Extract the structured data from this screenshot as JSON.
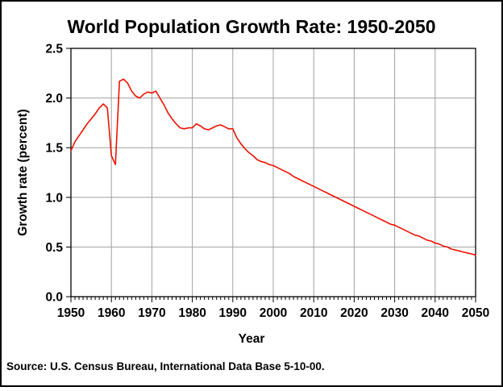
{
  "window": {
    "background": "#ffffff",
    "border_color": "#000000"
  },
  "chart_data": {
    "type": "line",
    "title": "World Population Growth Rate: 1950-2050",
    "xlabel": "Year",
    "ylabel": "Growth rate (percent)",
    "source_note": "Source: U.S. Census Bureau, International Data Base 5-10-00.",
    "xlim": [
      1950,
      2050
    ],
    "ylim": [
      0,
      2.5
    ],
    "x_tick_labels": [
      "1950",
      "1960",
      "1970",
      "1980",
      "1990",
      "2000",
      "2010",
      "2020",
      "2030",
      "2040",
      "2050"
    ],
    "x_ticks_major": [
      1950,
      1960,
      1970,
      1980,
      1990,
      2000,
      2010,
      2020,
      2030,
      2040,
      2050
    ],
    "x_minor_tick_step": 1,
    "y_tick_labels": [
      "0.0",
      "0.5",
      "1.0",
      "1.5",
      "2.0",
      "2.5"
    ],
    "y_ticks": [
      0.0,
      0.5,
      1.0,
      1.5,
      2.0,
      2.5
    ],
    "grid": {
      "vertical_at": [
        1960,
        1970,
        1980,
        1990,
        2000,
        2010,
        2020,
        2030,
        2040
      ],
      "horizontal_at": [
        0.5,
        1.0,
        1.5,
        2.0
      ],
      "color": "#a0a0a0"
    },
    "legend": "none",
    "series": [
      {
        "name": "World population growth rate (percent)",
        "color": "#ee1100",
        "x": [
          1950,
          1951,
          1952,
          1953,
          1954,
          1955,
          1956,
          1957,
          1958,
          1959,
          1960,
          1961,
          1962,
          1963,
          1964,
          1965,
          1966,
          1967,
          1968,
          1969,
          1970,
          1971,
          1972,
          1973,
          1974,
          1975,
          1976,
          1977,
          1978,
          1979,
          1980,
          1981,
          1982,
          1983,
          1984,
          1985,
          1986,
          1987,
          1988,
          1989,
          1990,
          1991,
          1992,
          1993,
          1994,
          1995,
          1996,
          1997,
          1998,
          1999,
          2000,
          2001,
          2002,
          2003,
          2004,
          2005,
          2006,
          2007,
          2008,
          2009,
          2010,
          2011,
          2012,
          2013,
          2014,
          2015,
          2016,
          2017,
          2018,
          2019,
          2020,
          2021,
          2022,
          2023,
          2024,
          2025,
          2026,
          2027,
          2028,
          2029,
          2030,
          2031,
          2032,
          2033,
          2034,
          2035,
          2036,
          2037,
          2038,
          2039,
          2040,
          2041,
          2042,
          2043,
          2044,
          2045,
          2046,
          2047,
          2048,
          2049,
          2050
        ],
        "values": [
          1.47,
          1.56,
          1.62,
          1.68,
          1.74,
          1.79,
          1.84,
          1.9,
          1.94,
          1.9,
          1.42,
          1.33,
          2.17,
          2.19,
          2.15,
          2.07,
          2.02,
          2.0,
          2.04,
          2.06,
          2.05,
          2.07,
          2.0,
          1.93,
          1.85,
          1.79,
          1.74,
          1.7,
          1.69,
          1.7,
          1.7,
          1.74,
          1.72,
          1.69,
          1.68,
          1.7,
          1.72,
          1.73,
          1.71,
          1.69,
          1.69,
          1.6,
          1.54,
          1.49,
          1.45,
          1.42,
          1.38,
          1.36,
          1.35,
          1.33,
          1.32,
          1.3,
          1.28,
          1.26,
          1.24,
          1.21,
          1.19,
          1.17,
          1.15,
          1.13,
          1.11,
          1.09,
          1.07,
          1.05,
          1.03,
          1.01,
          0.99,
          0.97,
          0.95,
          0.93,
          0.91,
          0.89,
          0.87,
          0.85,
          0.83,
          0.81,
          0.79,
          0.77,
          0.75,
          0.73,
          0.72,
          0.7,
          0.68,
          0.66,
          0.64,
          0.62,
          0.61,
          0.59,
          0.57,
          0.56,
          0.54,
          0.53,
          0.51,
          0.5,
          0.48,
          0.47,
          0.46,
          0.45,
          0.44,
          0.43,
          0.42
        ]
      }
    ]
  }
}
